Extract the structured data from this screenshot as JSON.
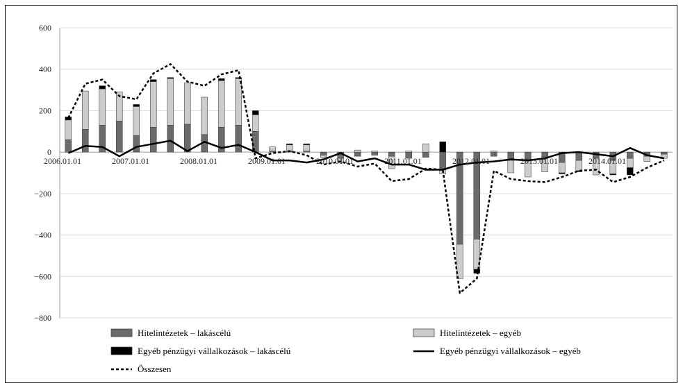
{
  "chart_data": {
    "type": "bar",
    "title": "",
    "xlabel": "",
    "ylabel": "",
    "ylim": [
      -800,
      600
    ],
    "yticks": [
      600,
      400,
      200,
      0,
      -200,
      -400,
      -600,
      -800
    ],
    "ytick_labels": [
      "600",
      "400",
      "200",
      "0",
      "−200",
      "−400",
      "−600",
      "−800"
    ],
    "x_tick_labels": [
      "2006.01.01",
      "2007.01.01",
      "2008.01.01",
      "2009.01.01",
      "2010.01.01",
      "2011.01.01",
      "2012.01.01",
      "2013.01.01",
      "2014.01.01"
    ],
    "x_tick_index": [
      0,
      4,
      8,
      12,
      16,
      20,
      24,
      28,
      32
    ],
    "grid": true,
    "legend_position": "bottom",
    "periods": [
      "2006Q1",
      "2006Q2",
      "2006Q3",
      "2006Q4",
      "2007Q1",
      "2007Q2",
      "2007Q3",
      "2007Q4",
      "2008Q1",
      "2008Q2",
      "2008Q3",
      "2008Q4",
      "2009Q1",
      "2009Q2",
      "2009Q3",
      "2009Q4",
      "2010Q1",
      "2010Q2",
      "2010Q3",
      "2010Q4",
      "2011Q1",
      "2011Q2",
      "2011Q3",
      "2011Q4",
      "2012Q1",
      "2012Q2",
      "2012Q3",
      "2012Q4",
      "2013Q1",
      "2013Q2",
      "2013Q3",
      "2013Q4",
      "2014Q1",
      "2014Q2",
      "2014Q3",
      "2014Q4"
    ],
    "series": [
      {
        "name": "Hitelintézetek – lakáscélú",
        "kind": "bar",
        "color": "#6b6b6b",
        "values": [
          60,
          110,
          130,
          150,
          80,
          120,
          130,
          135,
          85,
          120,
          130,
          100,
          5,
          5,
          5,
          -15,
          -30,
          -20,
          -15,
          -20,
          -30,
          -25,
          -80,
          -445,
          -420,
          -20,
          -40,
          -40,
          -30,
          -50,
          -40,
          -30,
          -40,
          -30,
          -20,
          -10
        ]
      },
      {
        "name": "Hitelintézetek – egyéb",
        "kind": "bar",
        "color": "#cccccc",
        "values": [
          95,
          185,
          175,
          140,
          140,
          220,
          225,
          200,
          180,
          225,
          225,
          80,
          20,
          30,
          30,
          -10,
          -20,
          10,
          5,
          -60,
          5,
          40,
          -25,
          -165,
          -145,
          5,
          -60,
          -80,
          -65,
          -50,
          -50,
          -80,
          -65,
          -45,
          -25,
          -20
        ]
      },
      {
        "name": "Egyéb pénzügyi vállalkozások – lakáscélú",
        "kind": "bar",
        "color": "#000000",
        "values": [
          15,
          0,
          15,
          0,
          10,
          10,
          5,
          0,
          0,
          10,
          5,
          20,
          0,
          5,
          5,
          0,
          0,
          0,
          0,
          0,
          0,
          0,
          50,
          0,
          -20,
          0,
          0,
          0,
          0,
          -5,
          -5,
          0,
          -5,
          -35,
          0,
          0
        ]
      },
      {
        "name": "Egyéb pénzügyi vállalkozások – egyéb",
        "kind": "line",
        "style": "solid",
        "color": "#000000",
        "values": [
          -5,
          30,
          25,
          -20,
          25,
          40,
          55,
          5,
          50,
          20,
          35,
          0,
          -40,
          -40,
          -50,
          -35,
          -5,
          -45,
          -30,
          -60,
          -60,
          -85,
          -85,
          -60,
          -50,
          -45,
          -35,
          -40,
          -30,
          -5,
          0,
          -10,
          -20,
          20,
          -15,
          -30
        ]
      },
      {
        "name": "Összesen",
        "kind": "line",
        "style": "dashed",
        "color": "#000000",
        "values": [
          165,
          330,
          350,
          270,
          255,
          380,
          425,
          340,
          320,
          375,
          395,
          -30,
          -5,
          5,
          -15,
          -60,
          -45,
          -70,
          -55,
          -140,
          -130,
          -80,
          -85,
          -680,
          -610,
          -90,
          -130,
          -140,
          -145,
          -120,
          -90,
          -85,
          -145,
          -120,
          -75,
          -40
        ]
      }
    ]
  }
}
